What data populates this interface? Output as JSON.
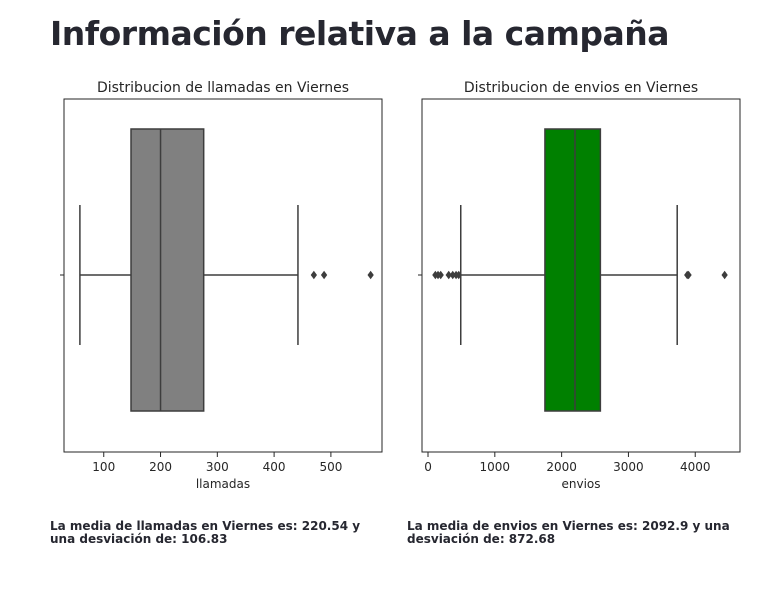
{
  "page": {
    "title": "Información relativa a la campaña"
  },
  "stats": [
    {
      "text": "La media de llamadas en Viernes es: 220.54 y una desviación de: 106.83"
    },
    {
      "text": "La media de envios en Viernes es: 2092.9 y una desviación de: 872.68"
    }
  ],
  "chart_data": [
    {
      "type": "boxplot",
      "title": "Distribucion de llamadas en Viernes",
      "xlabel": "llamadas",
      "xlim": [
        30,
        590
      ],
      "xticks": [
        100,
        200,
        300,
        400,
        500
      ],
      "box_color": "#808080",
      "whisker_low": 58,
      "q1": 148,
      "median": 200,
      "q3": 276,
      "whisker_high": 442,
      "outliers": [
        470,
        488,
        570
      ]
    },
    {
      "type": "boxplot",
      "title": "Distribucion de envios en Viernes",
      "xlabel": "envios",
      "xlim": [
        -90,
        4670
      ],
      "xticks": [
        0,
        1000,
        2000,
        3000,
        4000
      ],
      "box_color": "#008000",
      "whisker_low": 490,
      "q1": 1750,
      "median": 2200,
      "q3": 2580,
      "whisker_high": 3730,
      "outliers": [
        110,
        150,
        190,
        310,
        370,
        420,
        460,
        3880,
        3900,
        4440
      ]
    }
  ]
}
